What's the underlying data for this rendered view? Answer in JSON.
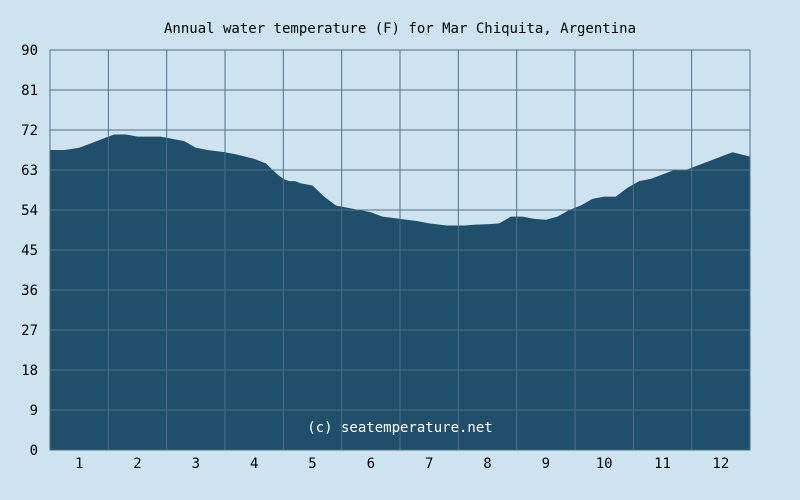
{
  "chart_data": {
    "type": "area",
    "title": "Annual water temperature (F) for Mar Chiquita, Argentina",
    "xlabel": "",
    "ylabel": "",
    "xlim": [
      0.5,
      12.5
    ],
    "ylim": [
      0,
      90
    ],
    "x_ticks": [
      "1",
      "2",
      "3",
      "4",
      "5",
      "6",
      "7",
      "8",
      "9",
      "10",
      "11",
      "12"
    ],
    "y_ticks": [
      "0",
      "9",
      "18",
      "27",
      "36",
      "45",
      "54",
      "63",
      "72",
      "81",
      "90"
    ],
    "grid": true,
    "series": [
      {
        "x": [
          0.5,
          0.75,
          1.0,
          1.2,
          1.4,
          1.6,
          1.8,
          2.0,
          2.2,
          2.4,
          2.6,
          2.8,
          3.0,
          3.2,
          3.5,
          3.7,
          4.0,
          4.2,
          4.4,
          4.5,
          4.6,
          4.7,
          4.8,
          5.0,
          5.2,
          5.4,
          5.6,
          5.8,
          6.0,
          6.2,
          6.5,
          6.8,
          7.0,
          7.3,
          7.6,
          7.8,
          8.0,
          8.2,
          8.4,
          8.6,
          8.8,
          9.0,
          9.2,
          9.4,
          9.6,
          9.8,
          10.0,
          10.2,
          10.4,
          10.6,
          10.8,
          11.0,
          11.2,
          11.4,
          11.6,
          11.8,
          12.0,
          12.2,
          12.5
        ],
        "y": [
          67.5,
          67.5,
          68.0,
          69.0,
          70.0,
          71.0,
          71.0,
          70.5,
          70.5,
          70.5,
          70.0,
          69.5,
          68.0,
          67.5,
          67.0,
          66.5,
          65.5,
          64.5,
          62.0,
          61.0,
          60.5,
          60.5,
          60.0,
          59.5,
          57.0,
          55.0,
          54.5,
          54.0,
          53.5,
          52.5,
          52.0,
          51.5,
          51.0,
          50.5,
          50.5,
          50.7,
          50.8,
          51.0,
          52.5,
          52.5,
          52.0,
          51.8,
          52.5,
          54.0,
          55.0,
          56.5,
          57.0,
          57.0,
          59.0,
          60.5,
          61.0,
          62.0,
          63.0,
          63.0,
          64.0,
          65.0,
          66.0,
          67.0,
          66.0
        ]
      }
    ],
    "annotation": "(c) seatemperature.net"
  },
  "colors": {
    "background": "#cde3ef",
    "plot_background": "#cde3ef",
    "fill": "#1f4f6b",
    "grid": "#4f6f86",
    "border": "#4f6f86",
    "text": "#000000",
    "watermark": "#ffffff"
  }
}
